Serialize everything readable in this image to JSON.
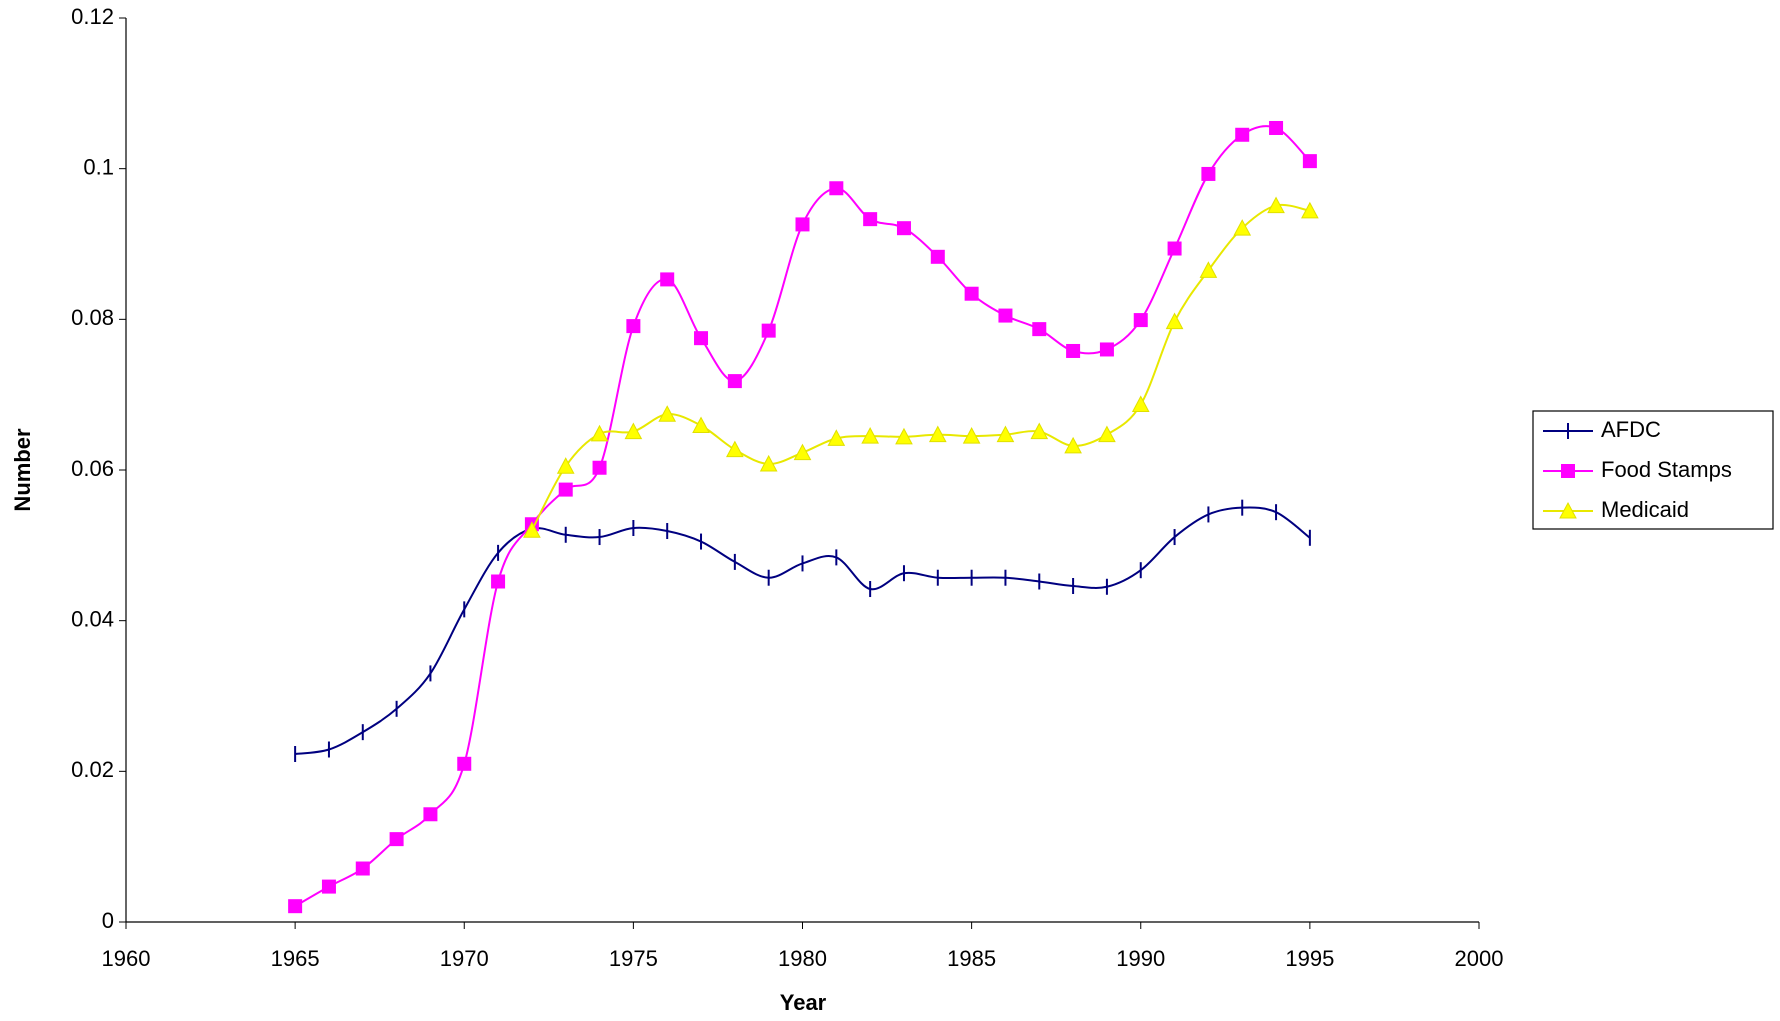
{
  "chart_data": {
    "type": "line",
    "xlabel": "Year",
    "ylabel": "Number",
    "x": [
      1965,
      1966,
      1967,
      1968,
      1969,
      1970,
      1971,
      1972,
      1973,
      1974,
      1975,
      1976,
      1977,
      1978,
      1979,
      1980,
      1981,
      1982,
      1983,
      1984,
      1985,
      1986,
      1987,
      1988,
      1989,
      1990,
      1991,
      1992,
      1993,
      1994,
      1995
    ],
    "series": [
      {
        "name": "AFDC",
        "color": "#000080",
        "marker": "tick",
        "values": [
          0.0223,
          0.0229,
          0.0252,
          0.0283,
          0.033,
          0.0415,
          0.049,
          0.0522,
          0.0514,
          0.0511,
          0.0523,
          0.0519,
          0.0505,
          0.0478,
          0.0457,
          0.0476,
          0.0484,
          0.0442,
          0.0463,
          0.0457,
          0.0457,
          0.0457,
          0.0452,
          0.0446,
          0.0445,
          0.0467,
          0.0511,
          0.0541,
          0.055,
          0.0544,
          0.051
        ]
      },
      {
        "name": "Food Stamps",
        "color": "#ff00ff",
        "marker": "square",
        "values": [
          0.0021,
          0.0047,
          0.0071,
          0.011,
          0.0143,
          0.021,
          0.0452,
          0.0528,
          0.0574,
          0.0603,
          0.0791,
          0.0853,
          0.0775,
          0.0718,
          0.0785,
          0.0926,
          0.0974,
          0.0933,
          0.0921,
          0.0883,
          0.0834,
          0.0805,
          0.0787,
          0.0758,
          0.076,
          0.0799,
          0.0894,
          0.0993,
          0.1045,
          0.1054,
          0.101
        ]
      },
      {
        "name": "Medicaid",
        "color": "#ffff00",
        "marker": "triangle",
        "values": [
          null,
          null,
          null,
          null,
          null,
          null,
          null,
          0.052,
          0.0605,
          0.0648,
          0.0651,
          0.0674,
          0.0659,
          0.0627,
          0.0608,
          0.0623,
          0.0642,
          0.0645,
          0.0644,
          0.0647,
          0.0645,
          0.0647,
          0.0651,
          0.0632,
          0.0647,
          0.0687,
          0.0797,
          0.0865,
          0.0921,
          0.0951,
          0.0944
        ]
      }
    ],
    "xlim": [
      1960,
      2000
    ],
    "xticks": [
      1960,
      1965,
      1970,
      1975,
      1980,
      1985,
      1990,
      1995,
      2000
    ],
    "ylim": [
      0,
      0.12
    ],
    "yticks": [
      0,
      0.02,
      0.04,
      0.06,
      0.08,
      0.1,
      0.12
    ],
    "grid": false,
    "smooth": true,
    "legend": "right"
  }
}
